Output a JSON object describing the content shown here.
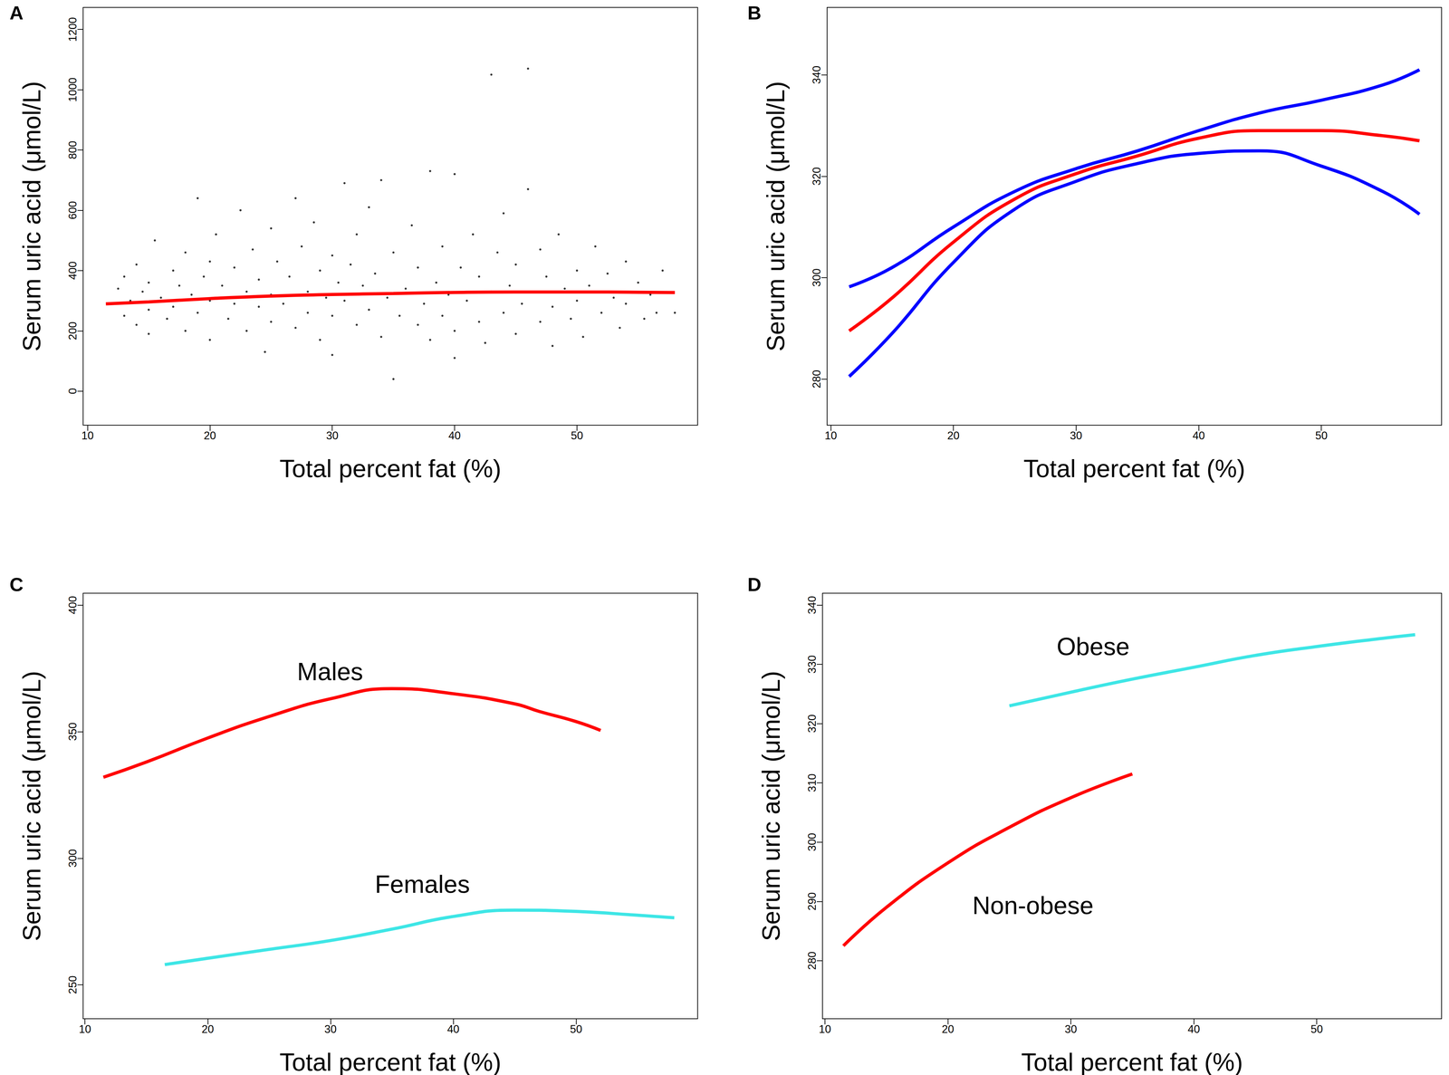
{
  "chart_data": [
    {
      "type": "scatter",
      "title": "A",
      "xlabel": "Total percent fat (%)",
      "ylabel": "Serum uric acid (μmol/L)",
      "xlim": [
        9.64,
        59.86
      ],
      "xticks": [
        10,
        20,
        30,
        40,
        50
      ],
      "ylim": [
        -113,
        1273
      ],
      "yticks": [
        0,
        200,
        400,
        600,
        800,
        1000,
        1200
      ],
      "series": [
        {
          "type": "scatter",
          "color": "#000000",
          "x": [
            12,
            12.5,
            13,
            13,
            13.5,
            14,
            14,
            14.5,
            15,
            15,
            15.5,
            15,
            16,
            16.5,
            17,
            17,
            17.5,
            18,
            18,
            18.5,
            19,
            19,
            19.5,
            20,
            20,
            20,
            20.5,
            21,
            21.5,
            22,
            22,
            22.5,
            23,
            23,
            23.5,
            24,
            24,
            24.5,
            25,
            25,
            25,
            25.5,
            26,
            26.5,
            27,
            27,
            27.5,
            28,
            28,
            28.5,
            29,
            29,
            29.5,
            30,
            30,
            30.5,
            30,
            31,
            31,
            31.5,
            32,
            32,
            32.5,
            33,
            33,
            33.5,
            34,
            34,
            34.5,
            35,
            35,
            35.5,
            36,
            36.5,
            37,
            37,
            37.5,
            38,
            38,
            38.5,
            39,
            39,
            39.5,
            40,
            40,
            40.5,
            40,
            41,
            41.5,
            42,
            42,
            42.5,
            43,
            43,
            43.5,
            44,
            44,
            44.5,
            45,
            45,
            45.5,
            46,
            46,
            46.5,
            47,
            47,
            47.5,
            48,
            48,
            48.5,
            49,
            49.5,
            50,
            50,
            50.5,
            51,
            51.5,
            52,
            52.5,
            53,
            53.5,
            54,
            54,
            55,
            55.5,
            56,
            56.5,
            57,
            58
          ],
          "values": [
            290,
            340,
            250,
            380,
            300,
            220,
            420,
            330,
            270,
            360,
            500,
            190,
            310,
            240,
            400,
            280,
            350,
            200,
            460,
            320,
            640,
            260,
            380,
            300,
            430,
            170,
            520,
            350,
            240,
            410,
            290,
            600,
            330,
            200,
            470,
            280,
            370,
            130,
            540,
            320,
            230,
            430,
            290,
            380,
            640,
            210,
            480,
            330,
            260,
            560,
            400,
            170,
            310,
            450,
            250,
            360,
            120,
            690,
            300,
            420,
            220,
            520,
            350,
            270,
            610,
            390,
            700,
            180,
            310,
            460,
            40,
            250,
            340,
            550,
            220,
            410,
            290,
            730,
            170,
            360,
            480,
            250,
            320,
            720,
            200,
            410,
            110,
            300,
            520,
            230,
            380,
            160,
            1050,
            330,
            460,
            260,
            590,
            350,
            190,
            420,
            290,
            1070,
            670,
            330,
            230,
            470,
            380,
            280,
            150,
            520,
            340,
            240,
            400,
            300,
            180,
            350,
            480,
            260,
            390,
            310,
            210,
            430,
            290,
            360,
            240,
            320,
            260,
            400,
            260
          ]
        },
        {
          "type": "line",
          "color": "#ff0000",
          "x": [
            11.5,
            15,
            20,
            25,
            30,
            35,
            40,
            45,
            50,
            55,
            58
          ],
          "values": [
            289.5,
            296,
            307,
            315.5,
            320.5,
            324,
            327.5,
            329,
            329,
            328,
            327
          ]
        }
      ]
    },
    {
      "type": "line",
      "title": "B",
      "xlabel": "Total percent fat (%)",
      "ylabel": "Serum uric acid (μmol/L)",
      "xlim": [
        9.7,
        59.8
      ],
      "xticks": [
        10,
        20,
        30,
        40,
        50
      ],
      "ylim": [
        270.9,
        353.3
      ],
      "yticks": [
        280,
        300,
        320,
        340
      ],
      "series": [
        {
          "color": "#0000ff",
          "x": [
            11.5,
            15,
            20,
            25,
            30,
            35,
            40,
            45,
            50,
            55,
            58
          ],
          "values": [
            298.2,
            302,
            310,
            317,
            321.5,
            325,
            329,
            332.5,
            335,
            338,
            341
          ]
        },
        {
          "color": "#0000ff",
          "x": [
            11.5,
            15,
            20,
            25,
            30,
            35,
            40,
            45,
            50,
            55,
            58
          ],
          "values": [
            280.5,
            289,
            303,
            313.5,
            319,
            322.5,
            324.5,
            325,
            322,
            317,
            312.5
          ]
        },
        {
          "color": "#ff0000",
          "x": [
            11.5,
            15,
            20,
            25,
            30,
            35,
            40,
            45,
            50,
            55,
            58
          ],
          "values": [
            289.5,
            296,
            307,
            315.5,
            320.5,
            324,
            327.5,
            329,
            329,
            328,
            327
          ]
        }
      ]
    },
    {
      "type": "line",
      "title": "C",
      "xlabel": "Total percent fat (%)",
      "ylabel": "Serum uric acid (μmol/L)",
      "xlim": [
        9.85,
        59.9
      ],
      "xticks": [
        10,
        20,
        30,
        40,
        50
      ],
      "ylim": [
        236.6,
        404.7
      ],
      "yticks": [
        250,
        300,
        350,
        400
      ],
      "series": [
        {
          "name": "Males",
          "color": "#ff0000",
          "x": [
            11.5,
            15,
            20,
            25,
            30,
            35,
            40,
            45,
            47,
            50,
            52
          ],
          "values": [
            332,
            338,
            347.5,
            356,
            363,
            367,
            365,
            361,
            358,
            354,
            350.5
          ]
        },
        {
          "name": "Females",
          "color": "#3ee6e6",
          "x": [
            16.5,
            20,
            25,
            30,
            35,
            40,
            45,
            50,
            55,
            58
          ],
          "values": [
            258,
            260.5,
            264,
            267.5,
            272,
            277,
            279.5,
            279,
            277.5,
            276.5
          ]
        }
      ]
    },
    {
      "type": "line",
      "title": "D",
      "xlabel": "Total percent fat (%)",
      "ylabel": "Serum uric acid (μmol/L)",
      "xlim": [
        9.8,
        60.15
      ],
      "xticks": [
        10,
        20,
        30,
        40,
        50
      ],
      "ylim": [
        270.2,
        342
      ],
      "yticks": [
        280,
        290,
        300,
        310,
        320,
        330,
        340
      ],
      "series": [
        {
          "name": "Obese",
          "color": "#3ee6e6",
          "x": [
            25,
            30,
            35,
            40,
            45,
            50,
            55,
            58
          ],
          "values": [
            323,
            325.3,
            327.5,
            329.5,
            331.5,
            333,
            334.3,
            335
          ]
        },
        {
          "name": "Non-obese",
          "color": "#ff0000",
          "x": [
            11.5,
            15,
            20,
            25,
            30,
            35
          ],
          "values": [
            282.5,
            289,
            296.5,
            302.5,
            307.5,
            311.5
          ]
        }
      ]
    }
  ]
}
